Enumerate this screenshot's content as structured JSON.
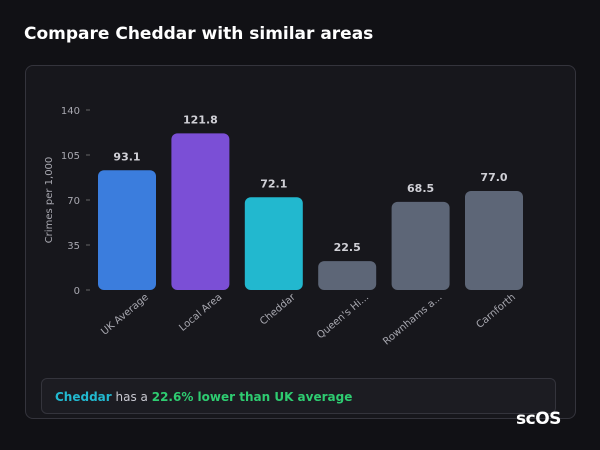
{
  "title": "Compare Cheddar with similar areas",
  "chart_data": {
    "type": "bar",
    "y_label": "Crimes per 1,000",
    "categories": [
      "UK Average",
      "Local Area",
      "Cheddar",
      "Queen's Hi...",
      "Rownhams a...",
      "Carnforth"
    ],
    "values": [
      93.1,
      121.8,
      72.1,
      22.5,
      68.5,
      77.0
    ],
    "value_labels": [
      "93.1",
      "121.8",
      "72.1",
      "22.5",
      "68.5",
      "77.0"
    ],
    "colors": [
      "#3b7ddd",
      "#7b4fd6",
      "#22b8cf",
      "#5d6677",
      "#5d6677",
      "#5d6677"
    ],
    "ylim": [
      0,
      140
    ],
    "yticks": [
      0,
      35,
      70,
      105,
      140
    ]
  },
  "summary": {
    "area": "Cheddar",
    "middle": "has a",
    "highlight": "22.6% lower than UK average"
  },
  "brand": "scOS"
}
